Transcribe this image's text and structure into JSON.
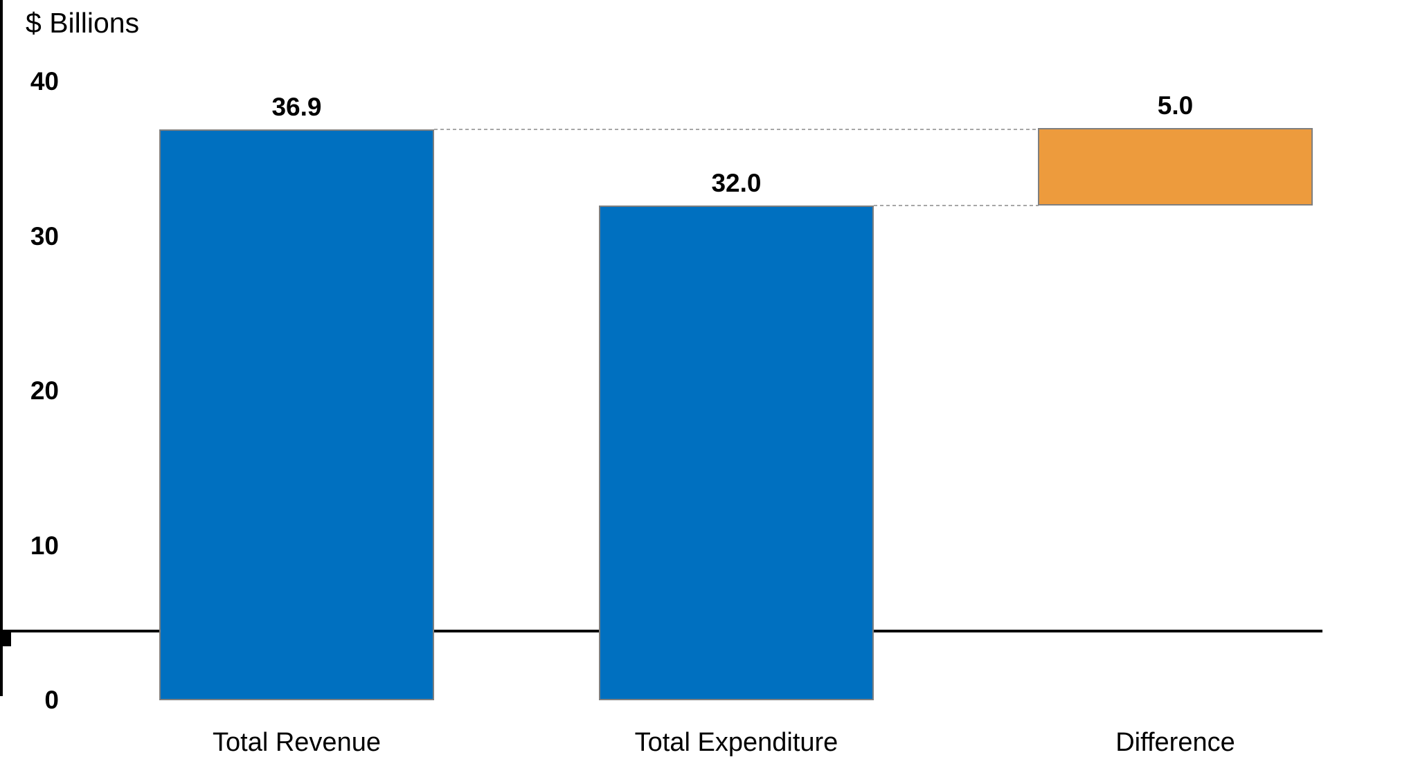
{
  "chart_data": {
    "type": "bar",
    "subtype": "waterfall",
    "title": "$ Billions",
    "categories": [
      "Total Revenue",
      "Total Expenditure",
      "Difference"
    ],
    "values": [
      36.9,
      32.0,
      5.0
    ],
    "bars": [
      {
        "label": "Total Revenue",
        "value_label": "36.9",
        "from": 0,
        "to": 36.9,
        "color": "#0070C0"
      },
      {
        "label": "Total Expenditure",
        "value_label": "32.0",
        "from": 0,
        "to": 32.0,
        "color": "#0070C0"
      },
      {
        "label": "Difference",
        "value_label": "5.0",
        "from": 32.0,
        "to": 37.0,
        "color": "#ED9B3D"
      }
    ],
    "y_axis": {
      "ticks": [
        0,
        10,
        20,
        30,
        40
      ],
      "tick_labels": [
        "0",
        "10",
        "20",
        "30",
        "40"
      ],
      "ylim": [
        0,
        40
      ]
    },
    "xlabel": "",
    "ylabel": "$ Billions",
    "grid": "off",
    "legend": "none",
    "connectors": [
      {
        "level": 36.9,
        "from_bar": 0,
        "to_bar": 2
      },
      {
        "level": 32.0,
        "from_bar": 1,
        "to_bar": 2
      }
    ],
    "colors": {
      "bar_blue": "#0070C0",
      "bar_orange": "#ED9B3D",
      "bar_border": "#7F7F7F",
      "connector": "#A6A6A6",
      "axis": "#000000",
      "text": "#000000"
    }
  }
}
